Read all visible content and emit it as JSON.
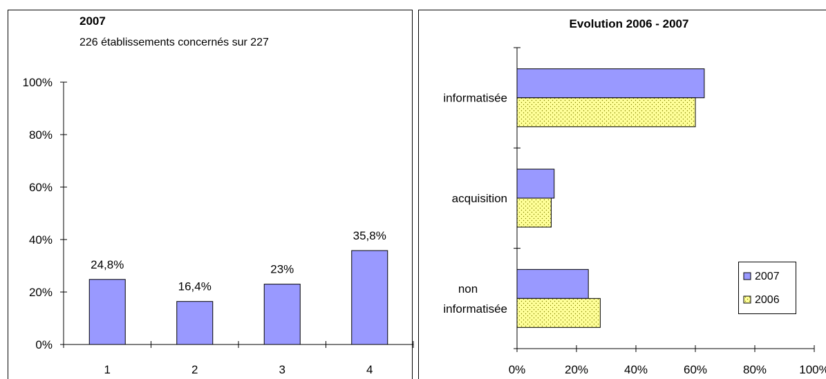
{
  "colors": {
    "bar_2007": "#9999ff",
    "bar_2006": "#ffff99",
    "dots_2006": "#808000",
    "stroke": "#000000"
  },
  "chart_data": [
    {
      "type": "bar",
      "title": "2007",
      "subtitle": "226 établissements concernés sur 227",
      "categories": [
        "1",
        "2",
        "3",
        "4"
      ],
      "values": [
        24.8,
        16.4,
        23,
        35.8
      ],
      "data_labels": [
        "24,8%",
        "16,4%",
        "23%",
        "35,8%"
      ],
      "ylim": [
        0,
        100
      ],
      "y_ticks": [
        0,
        20,
        40,
        60,
        80,
        100
      ],
      "y_tick_labels": [
        "0%",
        "20%",
        "40%",
        "60%",
        "80%",
        "100%"
      ],
      "grid": false
    },
    {
      "type": "bar",
      "orientation": "horizontal",
      "title": "Evolution 2006 - 2007",
      "categories": [
        [
          "informatisée"
        ],
        [
          "acquisition"
        ],
        [
          "non",
          "informatisée"
        ]
      ],
      "series": [
        {
          "name": "2007",
          "values": [
            63,
            12.5,
            24
          ]
        },
        {
          "name": "2006",
          "values": [
            60,
            11.5,
            28
          ]
        }
      ],
      "xlim": [
        0,
        100
      ],
      "x_ticks": [
        0,
        20,
        40,
        60,
        80,
        100
      ],
      "x_tick_labels": [
        "0%",
        "20%",
        "40%",
        "60%",
        "80%",
        "100%"
      ],
      "legend": {
        "position": "right",
        "entries": [
          "2007",
          "2006"
        ]
      },
      "grid": false
    }
  ]
}
